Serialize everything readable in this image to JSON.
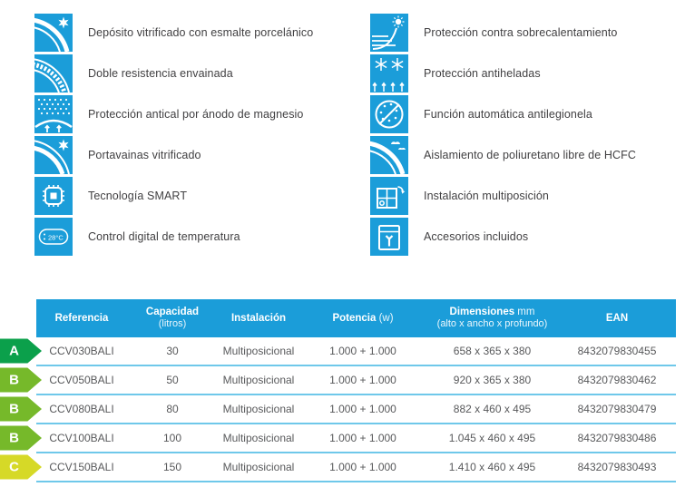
{
  "colors": {
    "brand_blue": "#1b9dd9",
    "row_line": "#6fc8ea",
    "feature_text": "#414042",
    "cell_text": "#58595b",
    "class_colors": {
      "A": "#0ba04b",
      "B": "#76b92a",
      "C": "#d6d927"
    }
  },
  "features": {
    "left": [
      {
        "icon": "tank-star-icon",
        "label": "Depósito vitrificado con esmalte porcelánico"
      },
      {
        "icon": "coil-icon",
        "label": "Doble resistencia envainada"
      },
      {
        "icon": "anode-dots-icon",
        "label": "Protección antical por ánodo de magnesio"
      },
      {
        "icon": "sheath-star-icon",
        "label": "Portavainas vitrificado"
      },
      {
        "icon": "chip-icon",
        "label": "Tecnología SMART"
      },
      {
        "icon": "digital-display-icon",
        "label": "Control digital de temperatura",
        "icon_text": "28°C"
      }
    ],
    "right": [
      {
        "icon": "overheat-icon",
        "label": "Protección contra sobrecalentamiento"
      },
      {
        "icon": "antifrost-icon",
        "label": "Protección antiheladas"
      },
      {
        "icon": "antilegionella-icon",
        "label": "Función automática antilegionela"
      },
      {
        "icon": "insulation-icon",
        "label": "Aislamiento de poliuretano libre de HCFC"
      },
      {
        "icon": "multiposition-icon",
        "label": "Instalación multiposición"
      },
      {
        "icon": "accessories-icon",
        "label": "Accesorios incluidos"
      }
    ]
  },
  "table": {
    "headers": [
      {
        "main": "Referencia",
        "suffix": "",
        "sub": ""
      },
      {
        "main": "Capacidad",
        "suffix": "",
        "sub": "(litros)"
      },
      {
        "main": "Instalación",
        "suffix": "",
        "sub": ""
      },
      {
        "main": "Potencia",
        "suffix": " (w)",
        "sub": ""
      },
      {
        "main": "Dimensiones",
        "suffix": " mm",
        "sub": "(alto x ancho x profundo)"
      },
      {
        "main": "EAN",
        "suffix": "",
        "sub": ""
      }
    ],
    "rows": [
      {
        "energy_class": "A",
        "referencia": "CCV030BALI",
        "capacidad": "30",
        "instalacion": "Multiposicional",
        "potencia": "1.000 + 1.000",
        "dimensiones": "658 x 365 x 380",
        "ean": "8432079830455"
      },
      {
        "energy_class": "B",
        "referencia": "CCV050BALI",
        "capacidad": "50",
        "instalacion": "Multiposicional",
        "potencia": "1.000 + 1.000",
        "dimensiones": "920 x 365 x 380",
        "ean": "8432079830462"
      },
      {
        "energy_class": "B",
        "referencia": "CCV080BALI",
        "capacidad": "80",
        "instalacion": "Multiposicional",
        "potencia": "1.000 + 1.000",
        "dimensiones": "882 x 460 x 495",
        "ean": "8432079830479"
      },
      {
        "energy_class": "B",
        "referencia": "CCV100BALI",
        "capacidad": "100",
        "instalacion": "Multiposicional",
        "potencia": "1.000 + 1.000",
        "dimensiones": "1.045 x 460 x 495",
        "ean": "8432079830486"
      },
      {
        "energy_class": "C",
        "referencia": "CCV150BALI",
        "capacidad": "150",
        "instalacion": "Multiposicional",
        "potencia": "1.000 + 1.000",
        "dimensiones": "1.410 x 460 x 495",
        "ean": "8432079830493"
      }
    ]
  }
}
